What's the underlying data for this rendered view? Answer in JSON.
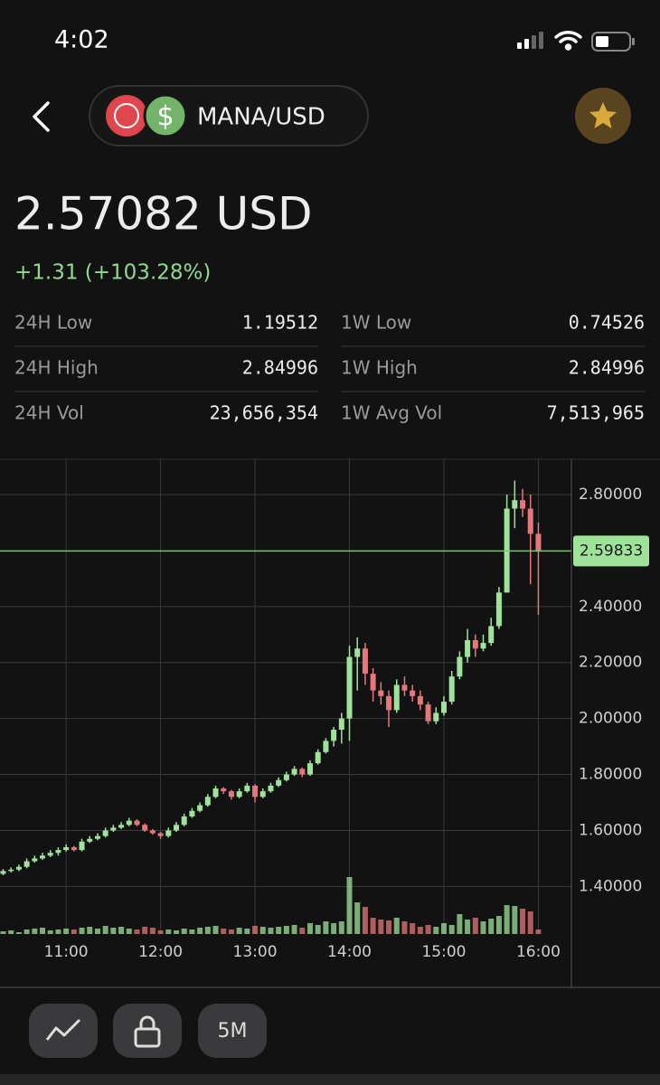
{
  "status_bar": {
    "time": "4:02"
  },
  "header": {
    "pair": "MANA/USD"
  },
  "price": {
    "value": "2.57082 USD",
    "change": "+1.31 (+103.28%)"
  },
  "stats": [
    {
      "label": "24H Low",
      "value": "1.19512"
    },
    {
      "label": "1W Low",
      "value": "0.74526"
    },
    {
      "label": "24H High",
      "value": "2.84996"
    },
    {
      "label": "1W High",
      "value": "2.84996"
    },
    {
      "label": "24H Vol",
      "value": "23,656,354"
    },
    {
      "label": "1W Avg Vol",
      "value": "7,513,965"
    }
  ],
  "chart_data": {
    "type": "candlestick",
    "x": [
      620,
      625,
      630,
      635,
      640,
      645,
      650,
      655,
      660,
      665,
      670,
      675,
      680,
      685,
      690,
      695,
      700,
      705,
      710,
      715,
      720,
      725,
      730,
      735,
      740,
      745,
      750,
      755,
      760,
      765,
      770,
      775,
      780,
      785,
      790,
      795,
      800,
      805,
      810,
      815,
      820,
      825,
      830,
      835,
      840,
      845,
      850,
      855,
      860,
      865,
      870,
      875,
      880,
      885,
      890,
      895,
      900,
      905,
      910,
      915,
      920,
      925,
      930,
      935,
      940,
      945,
      950,
      955,
      960
    ],
    "open": [
      1.445,
      1.455,
      1.46,
      1.47,
      1.49,
      1.5,
      1.51,
      1.52,
      1.53,
      1.54,
      1.53,
      1.56,
      1.57,
      1.58,
      1.6,
      1.61,
      1.62,
      1.635,
      1.62,
      1.6,
      1.59,
      1.58,
      1.6,
      1.62,
      1.65,
      1.67,
      1.69,
      1.72,
      1.75,
      1.74,
      1.72,
      1.74,
      1.76,
      1.72,
      1.74,
      1.76,
      1.78,
      1.8,
      1.82,
      1.8,
      1.84,
      1.88,
      1.92,
      1.96,
      2.0,
      2.22,
      2.25,
      2.16,
      2.1,
      2.08,
      2.03,
      2.12,
      2.1,
      2.08,
      2.05,
      1.99,
      2.02,
      2.06,
      2.15,
      2.22,
      2.28,
      2.25,
      2.27,
      2.33,
      2.45,
      2.75,
      2.78,
      2.75,
      2.66
    ],
    "high": [
      1.462,
      1.468,
      1.478,
      1.5,
      1.51,
      1.52,
      1.53,
      1.54,
      1.55,
      1.545,
      1.57,
      1.58,
      1.59,
      1.61,
      1.62,
      1.63,
      1.645,
      1.64,
      1.625,
      1.605,
      1.595,
      1.61,
      1.63,
      1.66,
      1.68,
      1.7,
      1.73,
      1.76,
      1.755,
      1.745,
      1.75,
      1.77,
      1.765,
      1.75,
      1.77,
      1.79,
      1.81,
      1.83,
      1.825,
      1.85,
      1.89,
      1.93,
      1.97,
      2.02,
      2.26,
      2.29,
      2.27,
      2.18,
      2.13,
      2.1,
      2.14,
      2.15,
      2.12,
      2.1,
      2.06,
      2.04,
      2.08,
      2.17,
      2.24,
      2.32,
      2.3,
      2.3,
      2.36,
      2.47,
      2.8,
      2.85,
      2.82,
      2.8,
      2.7
    ],
    "low": [
      1.44,
      1.45,
      1.455,
      1.465,
      1.485,
      1.495,
      1.505,
      1.51,
      1.525,
      1.525,
      1.525,
      1.555,
      1.565,
      1.575,
      1.595,
      1.605,
      1.615,
      1.615,
      1.595,
      1.585,
      1.57,
      1.575,
      1.595,
      1.615,
      1.645,
      1.665,
      1.685,
      1.715,
      1.73,
      1.71,
      1.715,
      1.735,
      1.7,
      1.715,
      1.735,
      1.755,
      1.775,
      1.795,
      1.79,
      1.795,
      1.835,
      1.875,
      1.9,
      1.91,
      1.92,
      2.1,
      2.12,
      2.06,
      2.05,
      1.97,
      2.02,
      2.08,
      2.06,
      2.03,
      1.98,
      1.98,
      2.01,
      2.05,
      2.14,
      2.2,
      2.22,
      2.24,
      2.26,
      2.32,
      2.45,
      2.68,
      2.72,
      2.48,
      2.37
    ],
    "close": [
      1.455,
      1.46,
      1.47,
      1.49,
      1.5,
      1.51,
      1.52,
      1.53,
      1.54,
      1.53,
      1.56,
      1.57,
      1.58,
      1.6,
      1.61,
      1.62,
      1.635,
      1.62,
      1.6,
      1.59,
      1.58,
      1.6,
      1.62,
      1.65,
      1.67,
      1.69,
      1.72,
      1.75,
      1.74,
      1.72,
      1.74,
      1.76,
      1.72,
      1.74,
      1.76,
      1.78,
      1.8,
      1.82,
      1.8,
      1.84,
      1.88,
      1.92,
      1.96,
      2.0,
      2.22,
      2.25,
      2.16,
      2.1,
      2.08,
      2.03,
      2.12,
      2.1,
      2.08,
      2.05,
      1.99,
      2.02,
      2.06,
      2.15,
      2.22,
      2.28,
      2.25,
      2.27,
      2.33,
      2.45,
      2.75,
      2.78,
      2.75,
      2.66,
      2.59833
    ],
    "volume": [
      3,
      4,
      2,
      5,
      6,
      7,
      4,
      5,
      6,
      5,
      7,
      8,
      6,
      9,
      7,
      8,
      6,
      5,
      8,
      7,
      4,
      5,
      4,
      6,
      5,
      7,
      8,
      9,
      6,
      5,
      7,
      6,
      9,
      8,
      7,
      8,
      9,
      10,
      7,
      12,
      10,
      14,
      12,
      14,
      63,
      35,
      30,
      18,
      16,
      15,
      18,
      14,
      12,
      8,
      10,
      8,
      12,
      10,
      22,
      16,
      18,
      14,
      17,
      20,
      32,
      31,
      28,
      25,
      5
    ],
    "volume_lim": [
      0,
      100
    ],
    "xlim": [
      618,
      981
    ],
    "xticks": [
      {
        "value": 660,
        "label": "11:00"
      },
      {
        "value": 720,
        "label": "12:00"
      },
      {
        "value": 780,
        "label": "13:00"
      },
      {
        "value": 840,
        "label": "14:00"
      },
      {
        "value": 900,
        "label": "15:00"
      },
      {
        "value": 960,
        "label": "16:00"
      }
    ],
    "ylim": [
      1.23,
      2.926
    ],
    "yticks": [
      {
        "value": 1.4,
        "label": "1.40000"
      },
      {
        "value": 1.6,
        "label": "1.60000"
      },
      {
        "value": 1.8,
        "label": "1.80000"
      },
      {
        "value": 2.0,
        "label": "2.00000"
      },
      {
        "value": 2.2,
        "label": "2.20000"
      },
      {
        "value": 2.4,
        "label": "2.40000"
      },
      {
        "value": 2.8,
        "label": "2.80000"
      }
    ],
    "last_price": 2.59833,
    "up_color": "#9fe39a",
    "down_color": "#e5777b",
    "grid": true
  },
  "toolbar": {
    "interval": "5M"
  }
}
